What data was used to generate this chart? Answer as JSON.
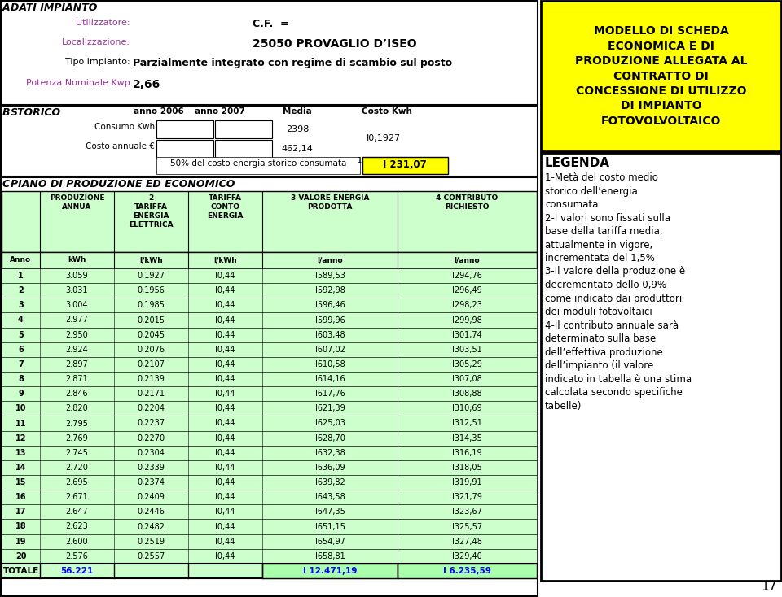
{
  "title_box": "MODELLO DI SCHEDA\nECONOMICA E DI\nPRODUZIONE ALLEGATA AL\nCONTRATTO DI\nCONCESSIONE DI UTILIZZO\nDI IMPIANTO\nFOTOVOLVOLTAICO",
  "title_bg": "#FFFF00",
  "legenda_title": "LEGENDA",
  "legenda_text": "1-Metà del costo medio\nstorico dell’energia\nconsumata\n2-I valori sono fissati sulla\nbase della tariffa media,\nattualmente in vigore,\nincrementata del 1,5%\n3-Il valore della produzione è\ndecrementato dello 0,9%\ncome indicato dai produttori\ndei moduli fotovoltaici\n4-Il contributo annuale sarà\ndeterminato sulla base\ndell’effettiva produzione\ndell’impianto (il valore\nindicato in tabella è una stima\ncalcolata secondo specifiche\ntabelle)",
  "page_num": "17",
  "section_a_title": "DATI IMPIANTO",
  "utilizzatore_label": "Utilizzatore:",
  "cf_value": "C.F.  =",
  "localizzazione_label": "Localizzazione:",
  "codice_value": "25050 PROVAGLIO D’ISEO",
  "tipo_label": "Tipo impianto:",
  "tipo_value": "Parzialmente integrato con regime di scambio sul posto",
  "potenza_label": "Potenza Nominale Kwp",
  "potenza_value": "2,66",
  "section_b_title": "STORICO",
  "storico_cols": [
    "anno 2006",
    "anno 2007",
    "Media",
    "Costo Kwh"
  ],
  "consumo_label": "Consumo Kwh",
  "consumo_media": "2398",
  "costo_label": "Costo annuale €",
  "costo_media": "462,14",
  "costo_kwh_value": "I0,1927",
  "cinquanta_label": "50% del costo energia storico consumata",
  "cinquanta_sup": "1",
  "cinquanta_value": "I 231,07",
  "section_c_title": "PIANO DI PRODUZIONE ED ECONOMICO",
  "table_header1": [
    "",
    "PRODUZIONE\nANNUA",
    "2\nTARIFFA\nENERGIA\nELETTRICA",
    "TARIFFA\nCONTO\nENERGIA",
    "VALORE ENERGIA\nPRODOTTA",
    "CONTRIBUTO\nRICHIESTO"
  ],
  "table_header1_prefix": [
    "",
    "",
    "2",
    "",
    "3",
    "4"
  ],
  "table_header2": [
    "Anno",
    "kWh",
    "l/kWh",
    "l/kWh",
    "l/anno",
    "l/anno"
  ],
  "table_data": [
    [
      "1",
      "3.059",
      "0,1927",
      "I0,44",
      "I589,53",
      "I294,76"
    ],
    [
      "2",
      "3.031",
      "0,1956",
      "I0,44",
      "I592,98",
      "I296,49"
    ],
    [
      "3",
      "3.004",
      "0,1985",
      "I0,44",
      "I596,46",
      "I298,23"
    ],
    [
      "4",
      "2.977",
      "0,2015",
      "I0,44",
      "I599,96",
      "I299,98"
    ],
    [
      "5",
      "2.950",
      "0,2045",
      "I0,44",
      "I603,48",
      "I301,74"
    ],
    [
      "6",
      "2.924",
      "0,2076",
      "I0,44",
      "I607,02",
      "I303,51"
    ],
    [
      "7",
      "2.897",
      "0,2107",
      "I0,44",
      "I610,58",
      "I305,29"
    ],
    [
      "8",
      "2.871",
      "0,2139",
      "I0,44",
      "I614,16",
      "I307,08"
    ],
    [
      "9",
      "2.846",
      "0,2171",
      "I0,44",
      "I617,76",
      "I308,88"
    ],
    [
      "10",
      "2.820",
      "0,2204",
      "I0,44",
      "I621,39",
      "I310,69"
    ],
    [
      "11",
      "2.795",
      "0,2237",
      "I0,44",
      "I625,03",
      "I312,51"
    ],
    [
      "12",
      "2.769",
      "0,2270",
      "I0,44",
      "I628,70",
      "I314,35"
    ],
    [
      "13",
      "2.745",
      "0,2304",
      "I0,44",
      "I632,38",
      "I316,19"
    ],
    [
      "14",
      "2.720",
      "0,2339",
      "I0,44",
      "I636,09",
      "I318,05"
    ],
    [
      "15",
      "2.695",
      "0,2374",
      "I0,44",
      "I639,82",
      "I319,91"
    ],
    [
      "16",
      "2.671",
      "0,2409",
      "I0,44",
      "I643,58",
      "I321,79"
    ],
    [
      "17",
      "2.647",
      "0,2446",
      "I0,44",
      "I647,35",
      "I323,67"
    ],
    [
      "18",
      "2.623",
      "0,2482",
      "I0,44",
      "I651,15",
      "I325,57"
    ],
    [
      "19",
      "2.600",
      "0,2519",
      "I0,44",
      "I654,97",
      "I327,48"
    ],
    [
      "20",
      "2.576",
      "0,2557",
      "I0,44",
      "I658,81",
      "I329,40"
    ]
  ],
  "totale_row": [
    "TOTALE",
    "56.221",
    "",
    "",
    "I 12.471,19",
    "I 6.235,59"
  ],
  "green_light": "#ccffcc",
  "green_medium": "#aaffaa",
  "yellow": "#FFFF00",
  "white": "#FFFFFF",
  "black": "#000000",
  "blue_text": "#0000FF",
  "purple_text": "#993399"
}
